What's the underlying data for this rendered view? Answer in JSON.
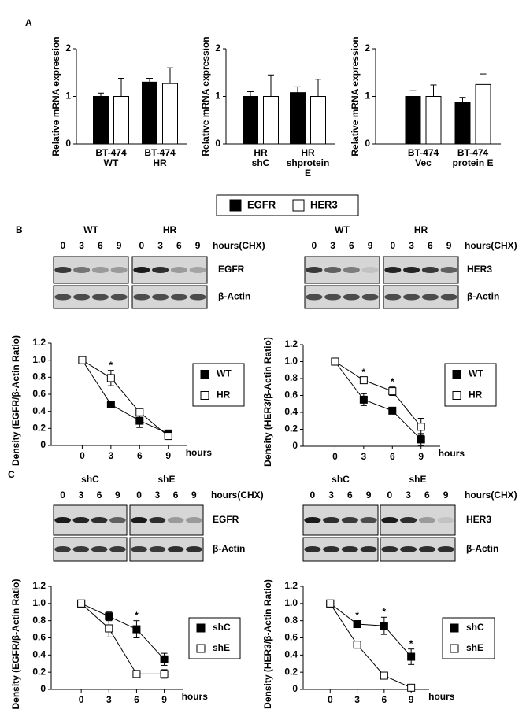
{
  "panels": [
    "A",
    "B",
    "C"
  ],
  "blots": [
    {
      "groups": [
        "WT",
        "HR"
      ],
      "lanes": [
        0,
        3,
        6,
        9
      ],
      "unit": "hours(CHX)",
      "rows": [
        "EGFR",
        "β-Actin"
      ]
    },
    {
      "groups": [
        "WT",
        "HR"
      ],
      "lanes": [
        0,
        3,
        6,
        9
      ],
      "unit": "hours(CHX)",
      "rows": [
        "HER3",
        "β-Actin"
      ]
    },
    {
      "groups": [
        "shC",
        "shE"
      ],
      "lanes": [
        0,
        3,
        6,
        9
      ],
      "unit": "hours(CHX)",
      "rows": [
        "EGFR",
        "β-Actin"
      ]
    },
    {
      "groups": [
        "shC",
        "shE"
      ],
      "lanes": [
        0,
        3,
        6,
        9
      ],
      "unit": "hours(CHX)",
      "rows": [
        "HER3",
        "β-Actin"
      ]
    }
  ],
  "chart_data": [
    {
      "type": "bar",
      "ylabel": "Relative mRNA expression",
      "legend": "bottom",
      "categories": [
        [
          "BT-474",
          "WT"
        ],
        [
          "BT-474",
          "HR"
        ]
      ],
      "series": [
        {
          "name": "EGFR",
          "color": "#000000",
          "values": [
            1.0,
            1.3
          ],
          "errors": [
            0.07,
            0.08
          ]
        },
        {
          "name": "HER3",
          "color": "#ffffff",
          "values": [
            1.0,
            1.27
          ],
          "errors": [
            0.38,
            0.33
          ]
        }
      ],
      "ylim": [
        0,
        2
      ],
      "yticks": [
        0,
        1,
        2
      ]
    },
    {
      "type": "bar",
      "ylabel": "Relative mRNA expression",
      "categories": [
        [
          "HR",
          "shC"
        ],
        [
          "HR",
          "shprotein",
          "E"
        ]
      ],
      "series": [
        {
          "color": "#000000",
          "values": [
            1.0,
            1.08
          ],
          "errors": [
            0.1,
            0.12
          ]
        },
        {
          "color": "#ffffff",
          "values": [
            1.0,
            1.0
          ],
          "errors": [
            0.45,
            0.36
          ]
        }
      ],
      "ylim": [
        0,
        2
      ],
      "yticks": [
        0,
        1,
        2
      ]
    },
    {
      "type": "bar",
      "ylabel": "Relative mRNA expression",
      "categories": [
        [
          "BT-474",
          "Vec"
        ],
        [
          "BT-474",
          "protein E"
        ]
      ],
      "series": [
        {
          "color": "#000000",
          "values": [
            1.0,
            0.88
          ],
          "errors": [
            0.12,
            0.1
          ]
        },
        {
          "color": "#ffffff",
          "values": [
            1.0,
            1.25
          ],
          "errors": [
            0.24,
            0.22
          ]
        }
      ],
      "ylim": [
        0,
        2
      ],
      "yticks": [
        0,
        1,
        2
      ]
    },
    {
      "type": "line",
      "ylabel": "Density (EGFR/β-Actin Ratio)",
      "xlabel": "hours",
      "legend": "right",
      "x": [
        0,
        3,
        6,
        9
      ],
      "xlim": [
        -3,
        11
      ],
      "xticks": [
        0,
        3,
        6,
        9
      ],
      "ylim": [
        0,
        1.2
      ],
      "yticks": [
        0,
        0.2,
        0.4,
        0.6,
        0.8,
        {
          "value": 1,
          "label": "1.0"
        },
        1.2
      ],
      "series": [
        {
          "name": "WT",
          "color": "#000000",
          "values": [
            1.0,
            0.48,
            0.29,
            0.14
          ],
          "errors": [
            null,
            0.02,
            0.08,
            0.03
          ]
        },
        {
          "name": "HR",
          "color": "#ffffff",
          "values": [
            1.0,
            0.79,
            0.39,
            0.11
          ],
          "errors": [
            null,
            0.09,
            0.04,
            0.03
          ]
        }
      ],
      "annotations": [
        {
          "text": "*",
          "x": 3
        }
      ]
    },
    {
      "type": "line",
      "ylabel": "Density (HER3/β-Actin Ratio)",
      "xlabel": "hours",
      "legend": "right",
      "x": [
        0,
        3,
        6,
        9
      ],
      "xlim": [
        -3,
        11
      ],
      "xticks": [
        0,
        3,
        6,
        9
      ],
      "ylim": [
        0,
        1.2
      ],
      "yticks": [
        0,
        0.2,
        0.4,
        0.6,
        0.8,
        {
          "value": 1,
          "label": "1.0"
        },
        1.2
      ],
      "series": [
        {
          "name": "WT",
          "color": "#000000",
          "values": [
            1.0,
            0.55,
            0.42,
            0.08
          ],
          "errors": [
            null,
            0.07,
            0.02,
            0.07
          ]
        },
        {
          "name": "HR",
          "color": "#ffffff",
          "values": [
            1.0,
            0.78,
            0.65,
            0.23
          ],
          "errors": [
            null,
            0.03,
            0.05,
            0.1
          ]
        }
      ],
      "annotations": [
        {
          "text": "*",
          "x": 3
        },
        {
          "text": "*",
          "x": 6
        }
      ]
    },
    {
      "type": "line",
      "ylabel": "Density (EGFR/β-Actin Ratio)",
      "xlabel": "hours",
      "legend": "right",
      "x": [
        0,
        3,
        6,
        9
      ],
      "xlim": [
        -3,
        11
      ],
      "xticks": [
        0,
        3,
        6,
        9
      ],
      "ylim": [
        0,
        1.2
      ],
      "yticks": [
        0,
        0.2,
        0.4,
        0.6,
        0.8,
        {
          "value": 1,
          "label": "1.0"
        },
        1.2
      ],
      "series": [
        {
          "name": "shC",
          "color": "#000000",
          "values": [
            1.0,
            0.85,
            0.7,
            0.35
          ],
          "errors": [
            null,
            0.05,
            0.1,
            0.07
          ]
        },
        {
          "name": "shE",
          "color": "#ffffff",
          "values": [
            1.0,
            0.71,
            0.18,
            0.18
          ],
          "errors": [
            null,
            0.1,
            0.02,
            0.05
          ]
        }
      ],
      "annotations": [
        {
          "text": "*",
          "x": 6
        }
      ]
    },
    {
      "type": "line",
      "ylabel": "Density (HER3/β-Actin Ratio)",
      "xlabel": "hours",
      "legend": "right",
      "x": [
        0,
        3,
        6,
        9
      ],
      "xlim": [
        -3,
        11
      ],
      "xticks": [
        0,
        3,
        6,
        9
      ],
      "ylim": [
        0,
        1.2
      ],
      "yticks": [
        0,
        0.2,
        0.4,
        0.6,
        0.8,
        {
          "value": 1,
          "label": "1.0"
        },
        1.2
      ],
      "series": [
        {
          "name": "shC",
          "color": "#000000",
          "values": [
            1.0,
            0.76,
            0.74,
            0.38
          ],
          "errors": [
            null,
            0.04,
            0.1,
            0.09
          ]
        },
        {
          "name": "shE",
          "color": "#ffffff",
          "values": [
            1.0,
            0.52,
            0.16,
            0.02
          ],
          "errors": [
            null,
            0.02,
            0.02,
            0.02
          ]
        }
      ],
      "annotations": [
        {
          "text": "*",
          "x": 3
        },
        {
          "text": "*",
          "x": 6
        },
        {
          "text": "*",
          "x": 9
        }
      ]
    }
  ]
}
